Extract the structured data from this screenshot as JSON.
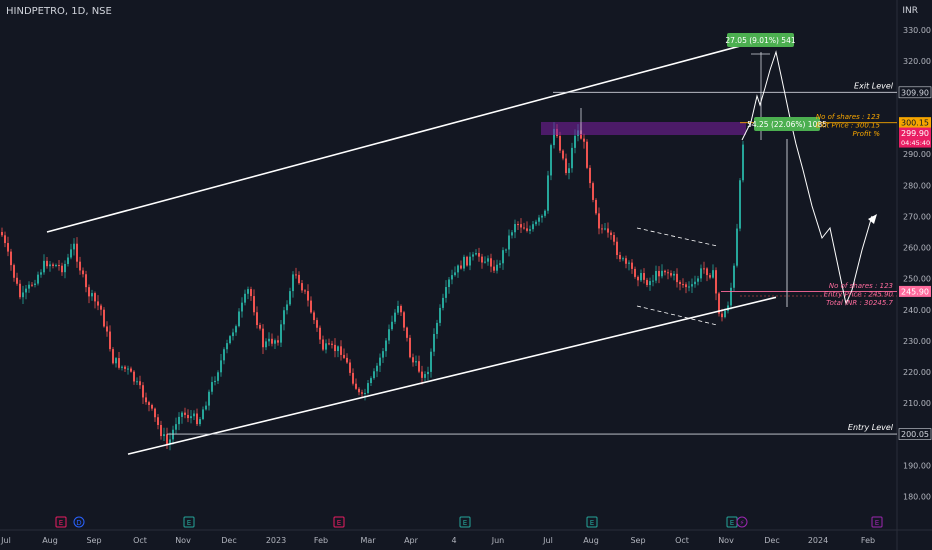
{
  "header": {
    "symbol_line": "HINDPETRO, 1D, NSE",
    "currency": "INR"
  },
  "chart_data": {
    "type": "candlestick",
    "x_axis": {
      "tick_labels": [
        "Jul",
        "Aug",
        "Sep",
        "Oct",
        "Nov",
        "Dec",
        "2023",
        "Feb",
        "Mar",
        "Apr",
        "4",
        "Jun",
        "Jul",
        "Aug",
        "Sep",
        "Oct",
        "Nov",
        "Dec",
        "2024",
        "Feb"
      ]
    },
    "y_axis": {
      "range": [
        175,
        337
      ],
      "tick_labels": [
        180,
        190,
        200,
        210,
        220,
        230,
        240,
        250,
        260,
        270,
        280,
        290,
        300,
        310,
        320,
        330
      ]
    },
    "price_tags": [
      {
        "value": 309.9,
        "label": "309.90",
        "style": "level"
      },
      {
        "value": 300.15,
        "label": "300.15",
        "style": "exit"
      },
      {
        "value": 296.8,
        "label": "299.90",
        "sub": "04:45:40",
        "style": "last"
      },
      {
        "value": 245.9,
        "label": "245.90",
        "style": "entry"
      },
      {
        "value": 200.05,
        "label": "200.05",
        "style": "level"
      }
    ],
    "levels": [
      {
        "name": "exit-level",
        "label": "Exit Level",
        "value": 309.9
      },
      {
        "name": "entry-level",
        "label": "Entry Level",
        "value": 200.05
      }
    ],
    "measure_boxes": [
      {
        "text": "27.05 (9.01%) 541",
        "color": "#4caf50"
      },
      {
        "text": "54.25 (22.06%) 1085",
        "color": "#4caf50"
      }
    ],
    "exit_note": [
      "No of shares : 123",
      "Exit Price    : 300.15",
      "Profit %"
    ],
    "entry_note": [
      "No of shares : 123",
      "Entry Price    : 245.90",
      "Total INR    : 30245.7"
    ],
    "colors": {
      "up": "#26a69a",
      "down": "#ef5350",
      "exit": "#f7a600",
      "entry": "#ff6b9d",
      "background": "#131722"
    },
    "event_markers": [
      {
        "label": "E",
        "color": "#e91e63"
      },
      {
        "label": "D",
        "color": "#2962ff"
      },
      {
        "label": "E",
        "color": "#26a69a"
      },
      {
        "label": "E",
        "color": "#e91e63"
      },
      {
        "label": "E",
        "color": "#26a69a"
      },
      {
        "label": "E",
        "color": "#26a69a"
      },
      {
        "label": "E",
        "color": "#26a69a"
      },
      {
        "label": "⚡",
        "color": "#9c27b0"
      },
      {
        "label": "E",
        "color": "#9c27b0"
      }
    ]
  }
}
